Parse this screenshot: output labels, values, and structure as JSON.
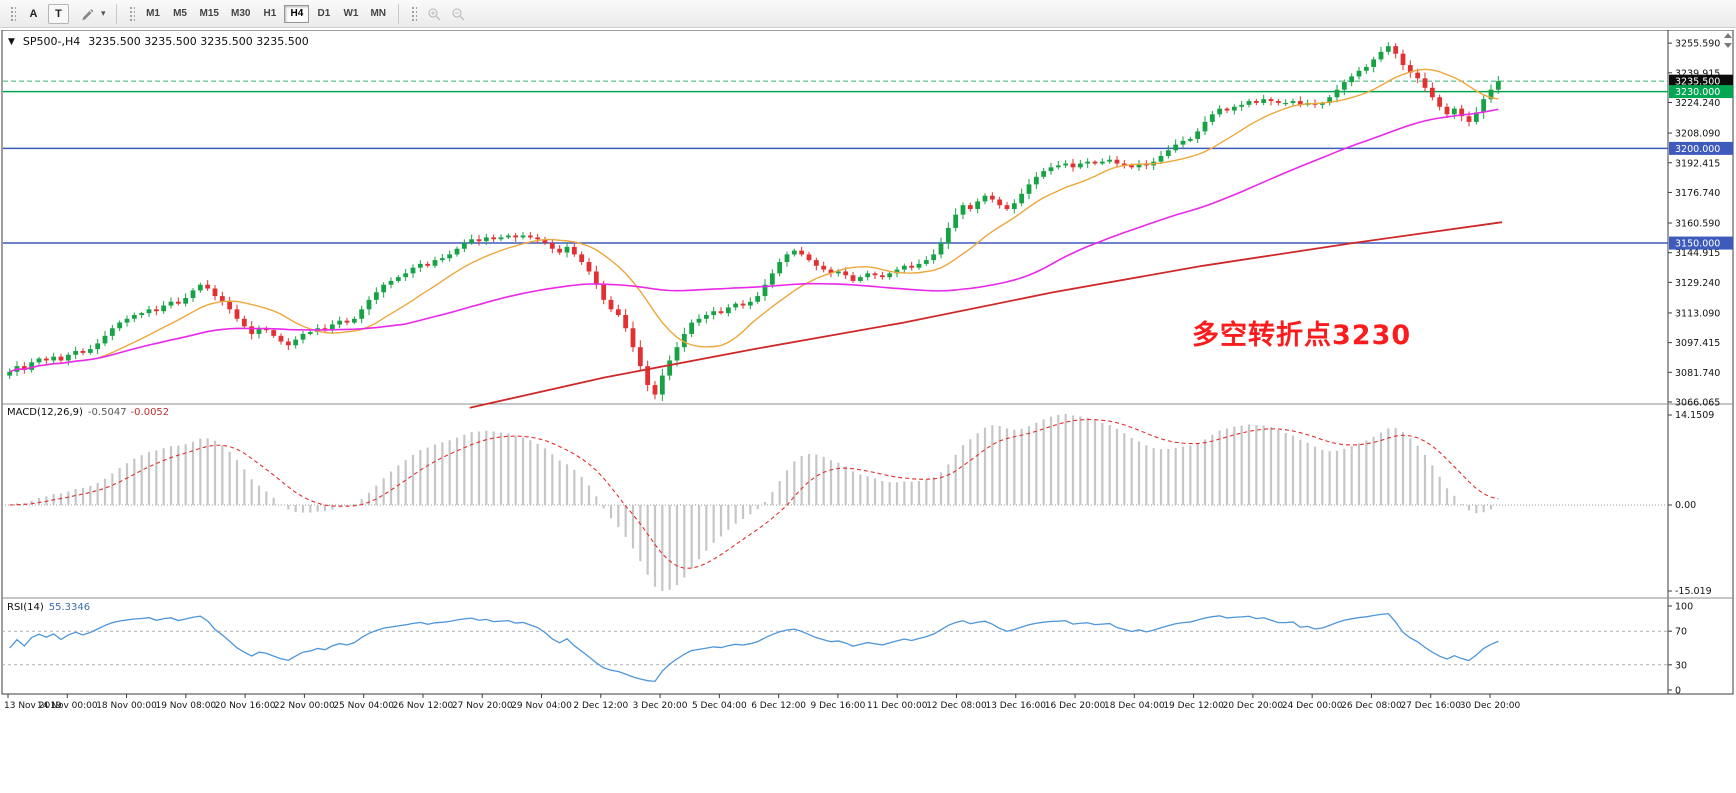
{
  "toolbar": {
    "tool_a": "A",
    "tool_t": "T",
    "timeframes": [
      "M1",
      "M5",
      "M15",
      "M30",
      "H1",
      "H4",
      "D1",
      "W1",
      "MN"
    ],
    "active_timeframe": "H4"
  },
  "chart_header": {
    "symbol_period": "SP500-,H4",
    "ohlc": "3235.500 3235.500 3235.500 3235.500"
  },
  "annotation": {
    "text": "多空转折点3230",
    "color": "#fb1d1d"
  },
  "price_axis": {
    "labels": [
      "3255.590",
      "3239.915",
      "3224.240",
      "3208.090",
      "3192.415",
      "3176.740",
      "3160.590",
      "3144.915",
      "3129.240",
      "3113.090",
      "3097.415",
      "3081.740",
      "3066.065"
    ],
    "values": [
      3255.59,
      3239.915,
      3224.24,
      3208.09,
      3192.415,
      3176.74,
      3160.59,
      3144.915,
      3129.24,
      3113.09,
      3097.415,
      3081.74,
      3066.065
    ],
    "tags": [
      {
        "label": "3235.500",
        "price": 3235.5,
        "bg": "#0c0c0c",
        "fg": "#ffffff"
      },
      {
        "label": "3230.000",
        "price": 3230.0,
        "bg": "#00a651",
        "fg": "#ffffff"
      },
      {
        "label": "3200.000",
        "price": 3200.0,
        "bg": "#3d5abc",
        "fg": "#ffffff"
      },
      {
        "label": "3150.000",
        "price": 3150.0,
        "bg": "#3d5abc",
        "fg": "#ffffff"
      }
    ]
  },
  "time_axis": {
    "labels": [
      "13 Nov 2019",
      "14 Nov 00:00",
      "18 Nov 00:00",
      "19 Nov 08:00",
      "20 Nov 16:00",
      "22 Nov 00:00",
      "25 Nov 04:00",
      "26 Nov 12:00",
      "27 Nov 20:00",
      "29 Nov 04:00",
      "2 Dec 12:00",
      "3 Dec 20:00",
      "5 Dec 04:00",
      "6 Dec 12:00",
      "9 Dec 16:00",
      "11 Dec 00:00",
      "12 Dec 08:00",
      "13 Dec 16:00",
      "16 Dec 20:00",
      "18 Dec 04:00",
      "19 Dec 12:00",
      "20 Dec 20:00",
      "24 Dec 00:00",
      "26 Dec 08:00",
      "27 Dec 16:00",
      "30 Dec 20:00"
    ]
  },
  "macd_panel": {
    "name": "MACD(12,26,9)",
    "value_main": "-0.5047",
    "value_signal": "-0.0052",
    "axis_labels": [
      "14.1509",
      "0.00",
      "-15.019"
    ]
  },
  "rsi_panel": {
    "name": "RSI(14)",
    "value": "55.3346",
    "axis_labels": [
      "100",
      "70",
      "30",
      "0"
    ]
  },
  "chart_data": {
    "type": "candlestick",
    "symbol": "SP500-",
    "timeframe": "H4",
    "title": "SP500-,H4",
    "price_range": [
      3065,
      3262
    ],
    "first_open": 3080,
    "closes": [
      3082,
      3085,
      3083,
      3087,
      3089,
      3088,
      3090,
      3088,
      3091,
      3093,
      3092,
      3094,
      3097,
      3101,
      3105,
      3108,
      3110,
      3112,
      3113,
      3115,
      3114,
      3117,
      3119,
      3118,
      3121,
      3125,
      3128,
      3126,
      3122,
      3119,
      3115,
      3110,
      3106,
      3102,
      3105,
      3104,
      3101,
      3098,
      3096,
      3099,
      3102,
      3103,
      3105,
      3104,
      3107,
      3109,
      3108,
      3110,
      3115,
      3120,
      3124,
      3128,
      3130,
      3132,
      3134,
      3137,
      3139,
      3138,
      3141,
      3142,
      3144,
      3147,
      3150,
      3152,
      3151,
      3153,
      3152,
      3153,
      3154,
      3153,
      3154,
      3153,
      3152,
      3150,
      3147,
      3145,
      3148,
      3144,
      3140,
      3135,
      3128,
      3120,
      3115,
      3112,
      3105,
      3095,
      3085,
      3075,
      3070,
      3080,
      3088,
      3095,
      3102,
      3108,
      3110,
      3112,
      3114,
      3113,
      3116,
      3118,
      3117,
      3119,
      3122,
      3128,
      3134,
      3140,
      3144,
      3146,
      3144,
      3141,
      3138,
      3136,
      3134,
      3135,
      3133,
      3130,
      3132,
      3134,
      3133,
      3132,
      3134,
      3136,
      3138,
      3137,
      3139,
      3141,
      3144,
      3150,
      3158,
      3165,
      3170,
      3168,
      3172,
      3175,
      3173,
      3170,
      3168,
      3171,
      3176,
      3181,
      3185,
      3188,
      3190,
      3191,
      3192,
      3190,
      3192,
      3193,
      3192,
      3193,
      3194,
      3192,
      3191,
      3190,
      3192,
      3191,
      3193,
      3196,
      3199,
      3202,
      3204,
      3205,
      3209,
      3214,
      3218,
      3221,
      3220,
      3222,
      3223,
      3225,
      3224,
      3226,
      3225,
      3224,
      3224,
      3225,
      3223,
      3224,
      3223,
      3224,
      3227,
      3231,
      3235,
      3238,
      3241,
      3243,
      3247,
      3251,
      3254,
      3250,
      3244,
      3240,
      3237,
      3232,
      3227,
      3222,
      3218,
      3221,
      3217,
      3214,
      3219,
      3226,
      3231,
      3235.5
    ],
    "horizontal_lines": [
      {
        "price": 3235.5,
        "color": "#3bb273",
        "style": "dashed",
        "note": "current bid"
      },
      {
        "price": 3230.0,
        "color": "#00a651",
        "style": "solid"
      },
      {
        "price": 3200.0,
        "color": "#3d5abc",
        "style": "solid"
      },
      {
        "price": 3150.0,
        "color": "#3d5abc",
        "style": "solid"
      }
    ],
    "moving_averages": {
      "fast_period": 13,
      "fast_color": "#eda73c",
      "mid_period": 55,
      "mid_color": "#ea28ea",
      "slow_color": "#d02828",
      "slow_points": [
        [
          0.31,
          3063
        ],
        [
          0.4,
          3079
        ],
        [
          0.5,
          3094
        ],
        [
          0.6,
          3108
        ],
        [
          0.7,
          3124
        ],
        [
          0.8,
          3138
        ],
        [
          0.9,
          3150
        ],
        [
          1.0,
          3161
        ]
      ]
    },
    "macd": {
      "fast": 12,
      "slow": 26,
      "signal": 9,
      "range": [
        -15.019,
        14.1509
      ],
      "hist_color": "#c6c6c6",
      "signal_color": "#e03030"
    },
    "rsi": {
      "period": 14,
      "range": [
        0,
        100
      ],
      "color": "#4e96d9",
      "levels": [
        70,
        30
      ]
    },
    "colors": {
      "up": "#17a246",
      "down": "#e03232"
    }
  }
}
